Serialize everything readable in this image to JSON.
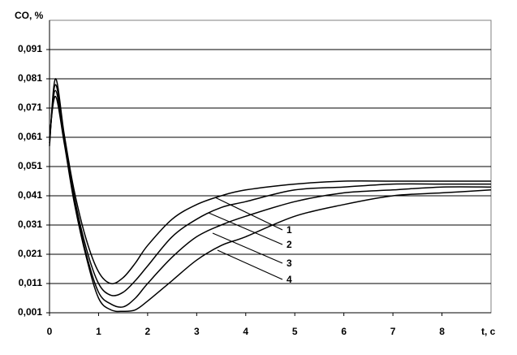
{
  "chart_data": {
    "type": "line",
    "y_label": "CO, %",
    "x_label": "t, c",
    "x": [
      0,
      0.12,
      0.3,
      0.5,
      0.75,
      1,
      1.25,
      1.5,
      1.75,
      2,
      2.5,
      3,
      3.5,
      4,
      5,
      6,
      7,
      8,
      9
    ],
    "series": [
      {
        "name": "1",
        "color": "#000000",
        "values": [
          0.058,
          0.081,
          0.062,
          0.043,
          0.026,
          0.015,
          0.011,
          0.013,
          0.018,
          0.024,
          0.033,
          0.038,
          0.041,
          0.043,
          0.045,
          0.046,
          0.046,
          0.046,
          0.046
        ]
      },
      {
        "name": "2",
        "color": "#000000",
        "values": [
          0.059,
          0.079,
          0.061,
          0.041,
          0.023,
          0.011,
          0.007,
          0.008,
          0.012,
          0.017,
          0.027,
          0.033,
          0.037,
          0.039,
          0.043,
          0.044,
          0.045,
          0.045,
          0.045
        ]
      },
      {
        "name": "3",
        "color": "#000000",
        "values": [
          0.06,
          0.077,
          0.06,
          0.04,
          0.021,
          0.008,
          0.004,
          0.003,
          0.006,
          0.011,
          0.02,
          0.027,
          0.031,
          0.034,
          0.039,
          0.042,
          0.043,
          0.044,
          0.044
        ]
      },
      {
        "name": "4",
        "color": "#000000",
        "values": [
          0.061,
          0.075,
          0.059,
          0.039,
          0.02,
          0.006,
          0.002,
          0.0015,
          0.002,
          0.005,
          0.012,
          0.019,
          0.024,
          0.027,
          0.034,
          0.038,
          0.041,
          0.042,
          0.043
        ]
      }
    ],
    "xlim": [
      0,
      9
    ],
    "xticks": [
      0,
      1,
      2,
      3,
      4,
      5,
      6,
      7,
      8
    ],
    "ylim": [
      0.001,
      0.101
    ],
    "yticks": [
      {
        "value": 0.001,
        "label": "0,001"
      },
      {
        "value": 0.011,
        "label": "0,011"
      },
      {
        "value": 0.021,
        "label": "0,021"
      },
      {
        "value": 0.031,
        "label": "0,031"
      },
      {
        "value": 0.041,
        "label": "0,041"
      },
      {
        "value": 0.051,
        "label": "0,051"
      },
      {
        "value": 0.061,
        "label": "0,061"
      },
      {
        "value": 0.071,
        "label": "0,071"
      },
      {
        "value": 0.081,
        "label": "0,081"
      },
      {
        "value": 0.091,
        "label": "0,091"
      }
    ],
    "grid": true
  }
}
